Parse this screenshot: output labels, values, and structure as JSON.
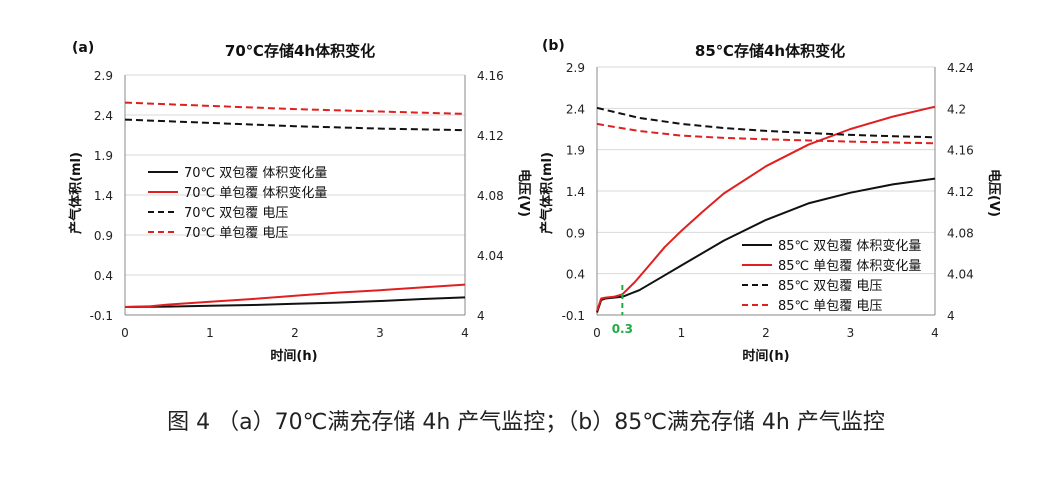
{
  "caption": "图 4 （a）70℃满充存储 4h 产气监控；（b）85℃满充存储 4h 产气监控",
  "colors": {
    "black": "#111111",
    "red": "#e02020",
    "grid": "#d9d9d9",
    "axis": "#888888",
    "marker": "#22aa44"
  },
  "chart_data": [
    {
      "type": "line",
      "panel_label": "(a)",
      "title": "70℃存储4h体积变化",
      "xlabel": "时间(h)",
      "ylabel": "产气体积(ml)",
      "y2label": "电压(V)",
      "xlim": [
        0,
        4
      ],
      "ylim": [
        -0.1,
        2.9
      ],
      "y2lim": [
        4,
        4.16
      ],
      "x_ticks": [
        "0",
        "1",
        "2",
        "3",
        "4"
      ],
      "y_ticks": [
        "-0.1",
        "0.4",
        "0.9",
        "1.4",
        "1.9",
        "2.4",
        "2.9"
      ],
      "y2_ticks": [
        "4",
        "4.04",
        "4.08",
        "4.12",
        "4.16"
      ],
      "legend": [
        "70℃ 双包覆 体积变化量",
        "70℃ 单包覆 体积变化量",
        "70℃ 双包覆 电压",
        "70℃ 单包覆 电压"
      ],
      "series": [
        {
          "name": "70℃ 双包覆 体积变化量",
          "axis": "left",
          "style": "solid",
          "color": "#111111",
          "x": [
            0,
            0.5,
            1,
            1.5,
            2,
            2.5,
            3,
            3.5,
            4
          ],
          "y": [
            0,
            0.005,
            0.015,
            0.025,
            0.04,
            0.055,
            0.075,
            0.1,
            0.12
          ]
        },
        {
          "name": "70℃ 单包覆 体积变化量",
          "axis": "left",
          "style": "solid",
          "color": "#e02020",
          "x": [
            0,
            0.3,
            0.5,
            1,
            1.5,
            2,
            2.5,
            3,
            3.5,
            4
          ],
          "y": [
            0,
            0.01,
            0.03,
            0.065,
            0.1,
            0.14,
            0.18,
            0.21,
            0.245,
            0.28
          ]
        },
        {
          "name": "70℃ 双包覆 电压",
          "axis": "right",
          "style": "dashed",
          "color": "#111111",
          "x": [
            0,
            1,
            2,
            3,
            4
          ],
          "y": [
            4.1303,
            4.1281,
            4.1259,
            4.1243,
            4.1232
          ]
        },
        {
          "name": "70℃ 单包覆 电压",
          "axis": "right",
          "style": "dashed",
          "color": "#e02020",
          "x": [
            0,
            1,
            2,
            3,
            4
          ],
          "y": [
            4.1416,
            4.1394,
            4.1373,
            4.1357,
            4.1341
          ]
        }
      ]
    },
    {
      "type": "line",
      "panel_label": "(b)",
      "title": "85℃存储4h体积变化",
      "xlabel": "时间(h)",
      "ylabel": "产气体积(ml)",
      "y2label": "电压(V)",
      "xlim": [
        0,
        4
      ],
      "ylim": [
        -0.1,
        2.9
      ],
      "y2lim": [
        4,
        4.24
      ],
      "x_ticks": [
        "0",
        "1",
        "2",
        "3",
        "4"
      ],
      "y_ticks": [
        "-0.1",
        "0.4",
        "0.9",
        "1.4",
        "1.9",
        "2.4",
        "2.9"
      ],
      "y2_ticks": [
        "4",
        "4.04",
        "4.08",
        "4.12",
        "4.16",
        "4.2",
        "4.24"
      ],
      "legend": [
        "85℃ 双包覆 体积变化量",
        "85℃ 单包覆 体积变化量",
        "85℃ 双包覆 电压",
        "85℃ 单包覆 电压"
      ],
      "annotation": {
        "x": 0.3,
        "label": "0.3"
      },
      "series": [
        {
          "name": "85℃ 双包覆 体积变化量",
          "axis": "left",
          "style": "solid",
          "color": "#111111",
          "x": [
            0,
            0.05,
            0.1,
            0.2,
            0.3,
            0.5,
            0.75,
            1,
            1.5,
            2,
            2.5,
            3,
            3.5,
            4
          ],
          "y": [
            -0.07,
            0.08,
            0.1,
            0.11,
            0.12,
            0.2,
            0.35,
            0.5,
            0.8,
            1.05,
            1.25,
            1.38,
            1.48,
            1.55
          ]
        },
        {
          "name": "85℃ 单包覆 体积变化量",
          "axis": "left",
          "style": "solid",
          "color": "#e02020",
          "x": [
            0,
            0.05,
            0.1,
            0.2,
            0.3,
            0.45,
            0.6,
            0.8,
            1,
            1.25,
            1.5,
            2,
            2.5,
            3,
            3.5,
            4
          ],
          "y": [
            -0.05,
            0.1,
            0.11,
            0.12,
            0.15,
            0.3,
            0.48,
            0.72,
            0.92,
            1.15,
            1.37,
            1.7,
            1.96,
            2.15,
            2.3,
            2.42
          ]
        },
        {
          "name": "85℃ 双包覆 电压",
          "axis": "right",
          "style": "dashed",
          "color": "#111111",
          "x": [
            0,
            0.2,
            0.5,
            1,
            1.5,
            2,
            2.5,
            3,
            3.5,
            4
          ],
          "y": [
            4.2004,
            4.1965,
            4.1907,
            4.1849,
            4.181,
            4.1782,
            4.1761,
            4.1743,
            4.173,
            4.172
          ]
        },
        {
          "name": "85℃ 单包覆 电压",
          "axis": "right",
          "style": "dashed",
          "color": "#e02020",
          "x": [
            0,
            0.2,
            0.5,
            1,
            1.5,
            2,
            2.5,
            3,
            3.5,
            4
          ],
          "y": [
            4.1849,
            4.182,
            4.1781,
            4.1736,
            4.1714,
            4.17,
            4.1689,
            4.1678,
            4.1669,
            4.1662
          ]
        }
      ]
    }
  ]
}
